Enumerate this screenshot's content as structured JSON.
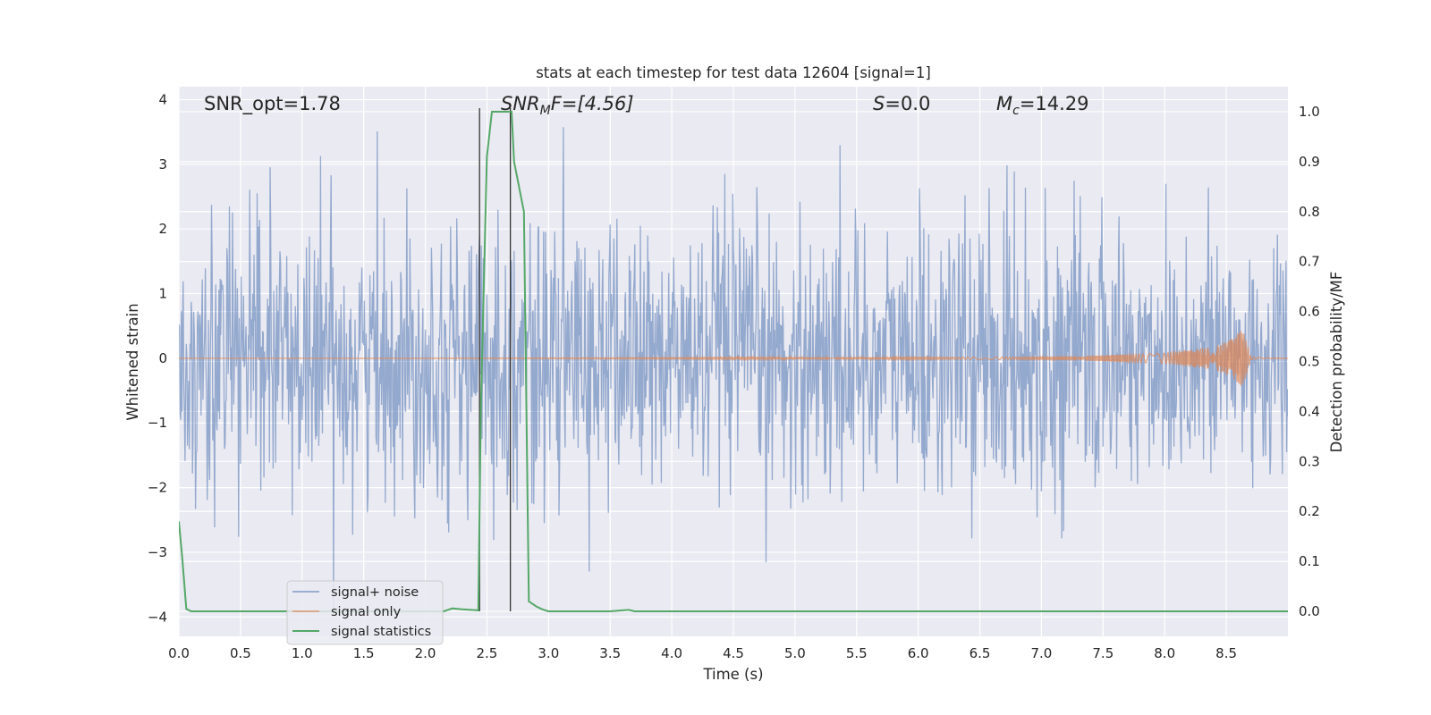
{
  "chart_data": {
    "type": "line",
    "title": "stats at each timestep for test data 12604 [signal=1]",
    "xlabel": "Time (s)",
    "ylabel_left": "Whitened strain",
    "ylabel_right": "Detection probability/MF",
    "xlim": [
      0.0,
      9.0
    ],
    "ylim_left": [
      -4.3,
      4.2
    ],
    "ylim_right": [
      -0.05,
      1.05
    ],
    "xticks": [
      "0.0",
      "0.5",
      "1.0",
      "1.5",
      "2.0",
      "2.5",
      "3.0",
      "3.5",
      "4.0",
      "4.5",
      "5.0",
      "5.5",
      "6.0",
      "6.5",
      "7.0",
      "7.5",
      "8.0",
      "8.5"
    ],
    "yticks_left": [
      "4",
      "3",
      "2",
      "1",
      "0",
      "−1",
      "−2",
      "−3",
      "−4"
    ],
    "yticks_right": [
      "1.0",
      "0.9",
      "0.8",
      "0.7",
      "0.6",
      "0.5",
      "0.4",
      "0.3",
      "0.2",
      "0.1",
      "0.0"
    ],
    "grid": true,
    "legend_position": "lower-left",
    "annotations": {
      "snr_opt": "SNR_opt=1.78",
      "snr_mf_base": "SNR",
      "snr_mf_sub": "M",
      "snr_mf_rest": "F=[4.56]",
      "s_sym": "S",
      "s_rest": "=0.0",
      "mc_base": "M",
      "mc_sub": "c",
      "mc_rest": "=14.29"
    },
    "vlines": [
      2.44,
      2.69
    ],
    "series": [
      {
        "name": "signal+ noise",
        "color": "#4c72b0",
        "description_stats": {
          "typical_envelope": [
            -2.0,
            2.2
          ],
          "peak_max": 3.8,
          "peak_min": -4.0
        }
      },
      {
        "name": "signal only",
        "color": "#dd8452",
        "x": [
          0.0,
          7.0,
          8.0,
          8.4,
          8.55,
          8.63,
          8.66,
          8.7,
          9.0
        ],
        "amplitude": [
          0.0,
          0.02,
          0.08,
          0.18,
          0.3,
          0.45,
          0.3,
          0.02,
          0.0
        ]
      },
      {
        "name": "signal statistics",
        "color": "#55a868",
        "x": [
          0.0,
          0.03,
          0.06,
          0.1,
          0.15,
          0.3,
          2.0,
          2.05,
          2.15,
          2.22,
          2.3,
          2.43,
          2.45,
          2.5,
          2.54,
          2.6,
          2.65,
          2.7,
          2.72,
          2.8,
          2.84,
          2.9,
          2.95,
          3.0,
          3.5,
          3.6,
          3.65,
          3.7,
          9.0
        ],
        "y": [
          0.18,
          0.1,
          0.005,
          0.0,
          0.0,
          0.0,
          0.0,
          0.0,
          0.0,
          0.006,
          0.004,
          0.002,
          0.4,
          0.91,
          1.0,
          1.0,
          1.0,
          1.0,
          0.9,
          0.8,
          0.02,
          0.01,
          0.004,
          0.0,
          0.0,
          0.002,
          0.003,
          0.0,
          0.0
        ]
      }
    ]
  }
}
